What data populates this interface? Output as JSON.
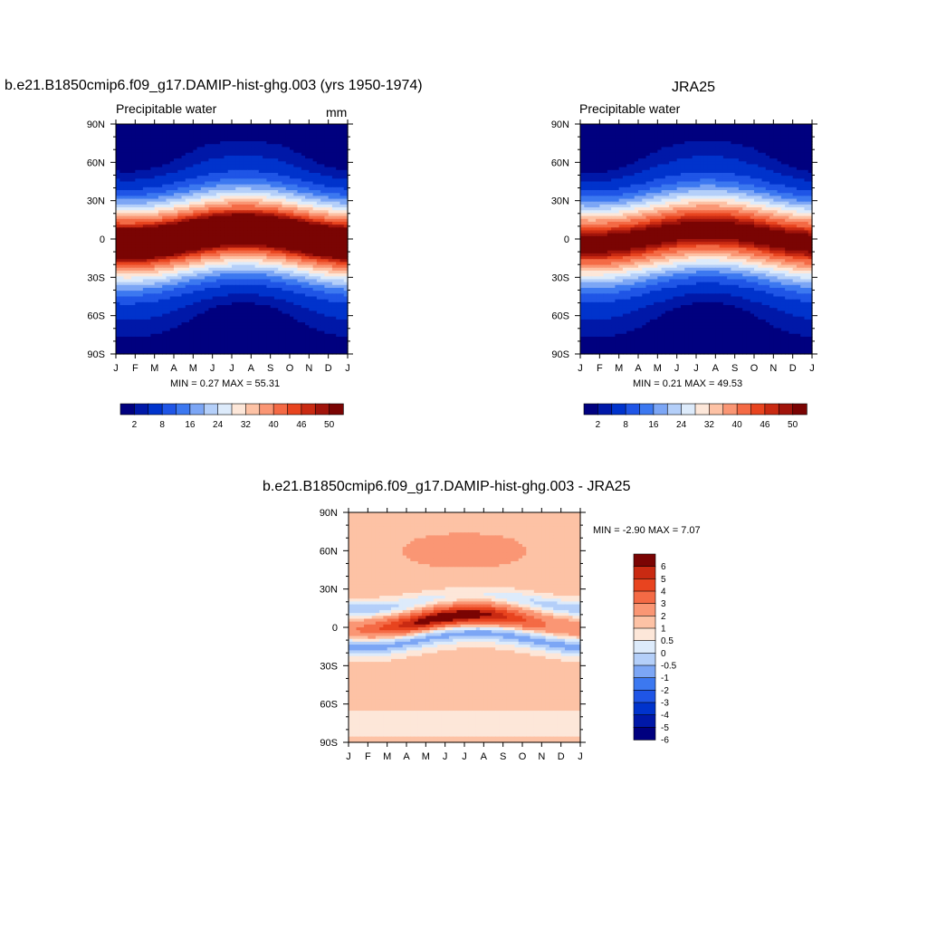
{
  "figure": {
    "panel1": {
      "title": "b.e21.B1850cmip6.f09_g17.DAMIP-hist-ghg.003 (yrs 1950-1974)",
      "left_label": "Precipitable water",
      "right_label": "mm",
      "minmax": "MIN =   0.27 MAX =  55.31"
    },
    "panel2": {
      "title": "JRA25",
      "left_label": "Precipitable water",
      "minmax": "MIN =   0.21 MAX =  49.53"
    },
    "panel3": {
      "title": "b.e21.B1850cmip6.f09_g17.DAMIP-hist-ghg.003 - JRA25",
      "minmax": "MIN =  -2.90 MAX =   7.07"
    }
  },
  "colors": {
    "abs_scale": [
      "#00007f",
      "#0018a8",
      "#0033cc",
      "#1f55e6",
      "#3c78f0",
      "#7ca6f5",
      "#b4cff9",
      "#ddebfb",
      "#fde7d9",
      "#fdc2a5",
      "#fa9674",
      "#f46a45",
      "#e8441f",
      "#c92a12",
      "#a1140b",
      "#7a0403"
    ],
    "diff_scale": [
      "#00007f",
      "#0018a8",
      "#0033cc",
      "#1f55e6",
      "#3c78f0",
      "#7ca6f5",
      "#b4cff9",
      "#ddebfb",
      "#fde7d9",
      "#fdc2a5",
      "#fa9674",
      "#f46a45",
      "#e8441f",
      "#c92a12",
      "#7a0403"
    ]
  },
  "chart_data": [
    {
      "type": "heatmap",
      "title": "b.e21.B1850cmip6.f09_g17.DAMIP-hist-ghg.003 (yrs 1950-1974)",
      "variable": "Precipitable water",
      "units": "mm",
      "x_tick_labels": [
        "J",
        "F",
        "M",
        "A",
        "M",
        "J",
        "J",
        "A",
        "S",
        "O",
        "N",
        "D",
        "J"
      ],
      "y_tick_labels": [
        "90N",
        "60N",
        "30N",
        "0",
        "30S",
        "60S",
        "90S"
      ],
      "colorbar_labels": [
        "2",
        "8",
        "16",
        "24",
        "32",
        "40",
        "46",
        "50"
      ],
      "min": 0.27,
      "max": 55.31
    },
    {
      "type": "heatmap",
      "title": "JRA25",
      "variable": "Precipitable water",
      "x_tick_labels": [
        "J",
        "F",
        "M",
        "A",
        "M",
        "J",
        "J",
        "A",
        "S",
        "O",
        "N",
        "D",
        "J"
      ],
      "y_tick_labels": [
        "90N",
        "60N",
        "30N",
        "0",
        "30S",
        "60S",
        "90S"
      ],
      "colorbar_labels": [
        "2",
        "8",
        "16",
        "24",
        "32",
        "40",
        "46",
        "50"
      ],
      "min": 0.21,
      "max": 49.53
    },
    {
      "type": "heatmap",
      "title": "b.e21.B1850cmip6.f09_g17.DAMIP-hist-ghg.003 - JRA25",
      "x_tick_labels": [
        "J",
        "F",
        "M",
        "A",
        "M",
        "J",
        "J",
        "A",
        "S",
        "O",
        "N",
        "D",
        "J"
      ],
      "y_tick_labels": [
        "90N",
        "60N",
        "30N",
        "0",
        "30S",
        "60S",
        "90S"
      ],
      "colorbar_labels": [
        "6",
        "5",
        "4",
        "3",
        "2",
        "1",
        "0.5",
        "0",
        "-0.5",
        "-1",
        "-2",
        "-3",
        "-4",
        "-5",
        "-6"
      ],
      "min": -2.9,
      "max": 7.07
    }
  ]
}
